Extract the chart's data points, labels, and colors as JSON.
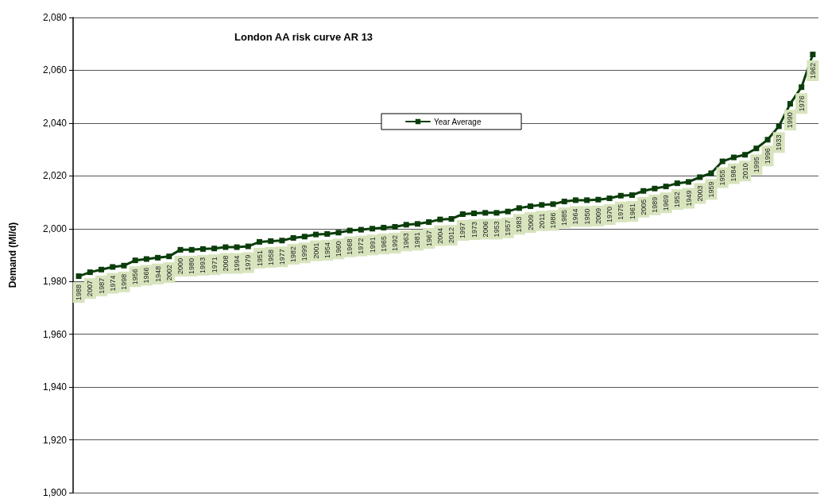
{
  "chart_data": {
    "type": "line",
    "title": "London AA risk curve AR 13",
    "ylabel": "Demand (Ml/d)",
    "categories": [
      "1988",
      "2007",
      "1987",
      "1974",
      "1998",
      "1956",
      "1966",
      "1948",
      "2002",
      "2000",
      "1980",
      "1993",
      "1971",
      "2008",
      "1994",
      "1979",
      "1951",
      "1958",
      "1977",
      "1982",
      "1999",
      "2001",
      "1954",
      "1960",
      "1968",
      "1972",
      "1991",
      "1965",
      "1992",
      "1963",
      "1981",
      "1967",
      "2004",
      "2012",
      "1997",
      "1973",
      "2006",
      "1953",
      "1957",
      "1983",
      "2009",
      "2011",
      "1986",
      "1985",
      "1964",
      "1950",
      "2009",
      "1970",
      "1975",
      "1961",
      "2005",
      "1989",
      "1969",
      "1952",
      "1949",
      "2003",
      "1959",
      "1955",
      "1984",
      "2010",
      "1995",
      "1996",
      "1933",
      "1990",
      "1976",
      "1962"
    ],
    "series": [
      {
        "name": "Year Average",
        "color": "#0b3d0b",
        "values": [
          1982,
          1983.5,
          1984.5,
          1985.5,
          1986,
          1988,
          1988.5,
          1989,
          1989.5,
          1992,
          1992,
          1992.3,
          1992.5,
          1993,
          1993,
          1993.3,
          1995,
          1995.3,
          1995.5,
          1996.5,
          1997,
          1997.8,
          1998,
          1998.5,
          1999.3,
          1999.6,
          2000,
          2000.4,
          2000.7,
          2001.5,
          2001.8,
          2002.5,
          2003.5,
          2003.7,
          2005.5,
          2005.8,
          2006,
          2006,
          2006.5,
          2007.8,
          2008.5,
          2009,
          2009.3,
          2010.3,
          2010.8,
          2010.8,
          2011,
          2011.5,
          2012.5,
          2012.7,
          2014.3,
          2015.2,
          2016,
          2017.2,
          2017.7,
          2019.5,
          2021,
          2025.5,
          2027,
          2028,
          2030.4,
          2033.7,
          2038.8,
          2047.3,
          2053.6,
          2066
        ]
      }
    ],
    "ylim": [
      1900,
      2080
    ],
    "yticks": [
      {
        "value": 1900,
        "label": "1,900"
      },
      {
        "value": 1920,
        "label": "1,920"
      },
      {
        "value": 1940,
        "label": "1,940"
      },
      {
        "value": 1960,
        "label": "1,960"
      },
      {
        "value": 1980,
        "label": "1,980"
      },
      {
        "value": 2000,
        "label": "2,000"
      },
      {
        "value": 2020,
        "label": "2,020"
      },
      {
        "value": 2040,
        "label": "2,040"
      },
      {
        "value": 2060,
        "label": "2,060"
      },
      {
        "value": 2080,
        "label": "2,080"
      }
    ],
    "grid": "y",
    "legend": "top",
    "marker": "square",
    "line_style": "solid"
  }
}
